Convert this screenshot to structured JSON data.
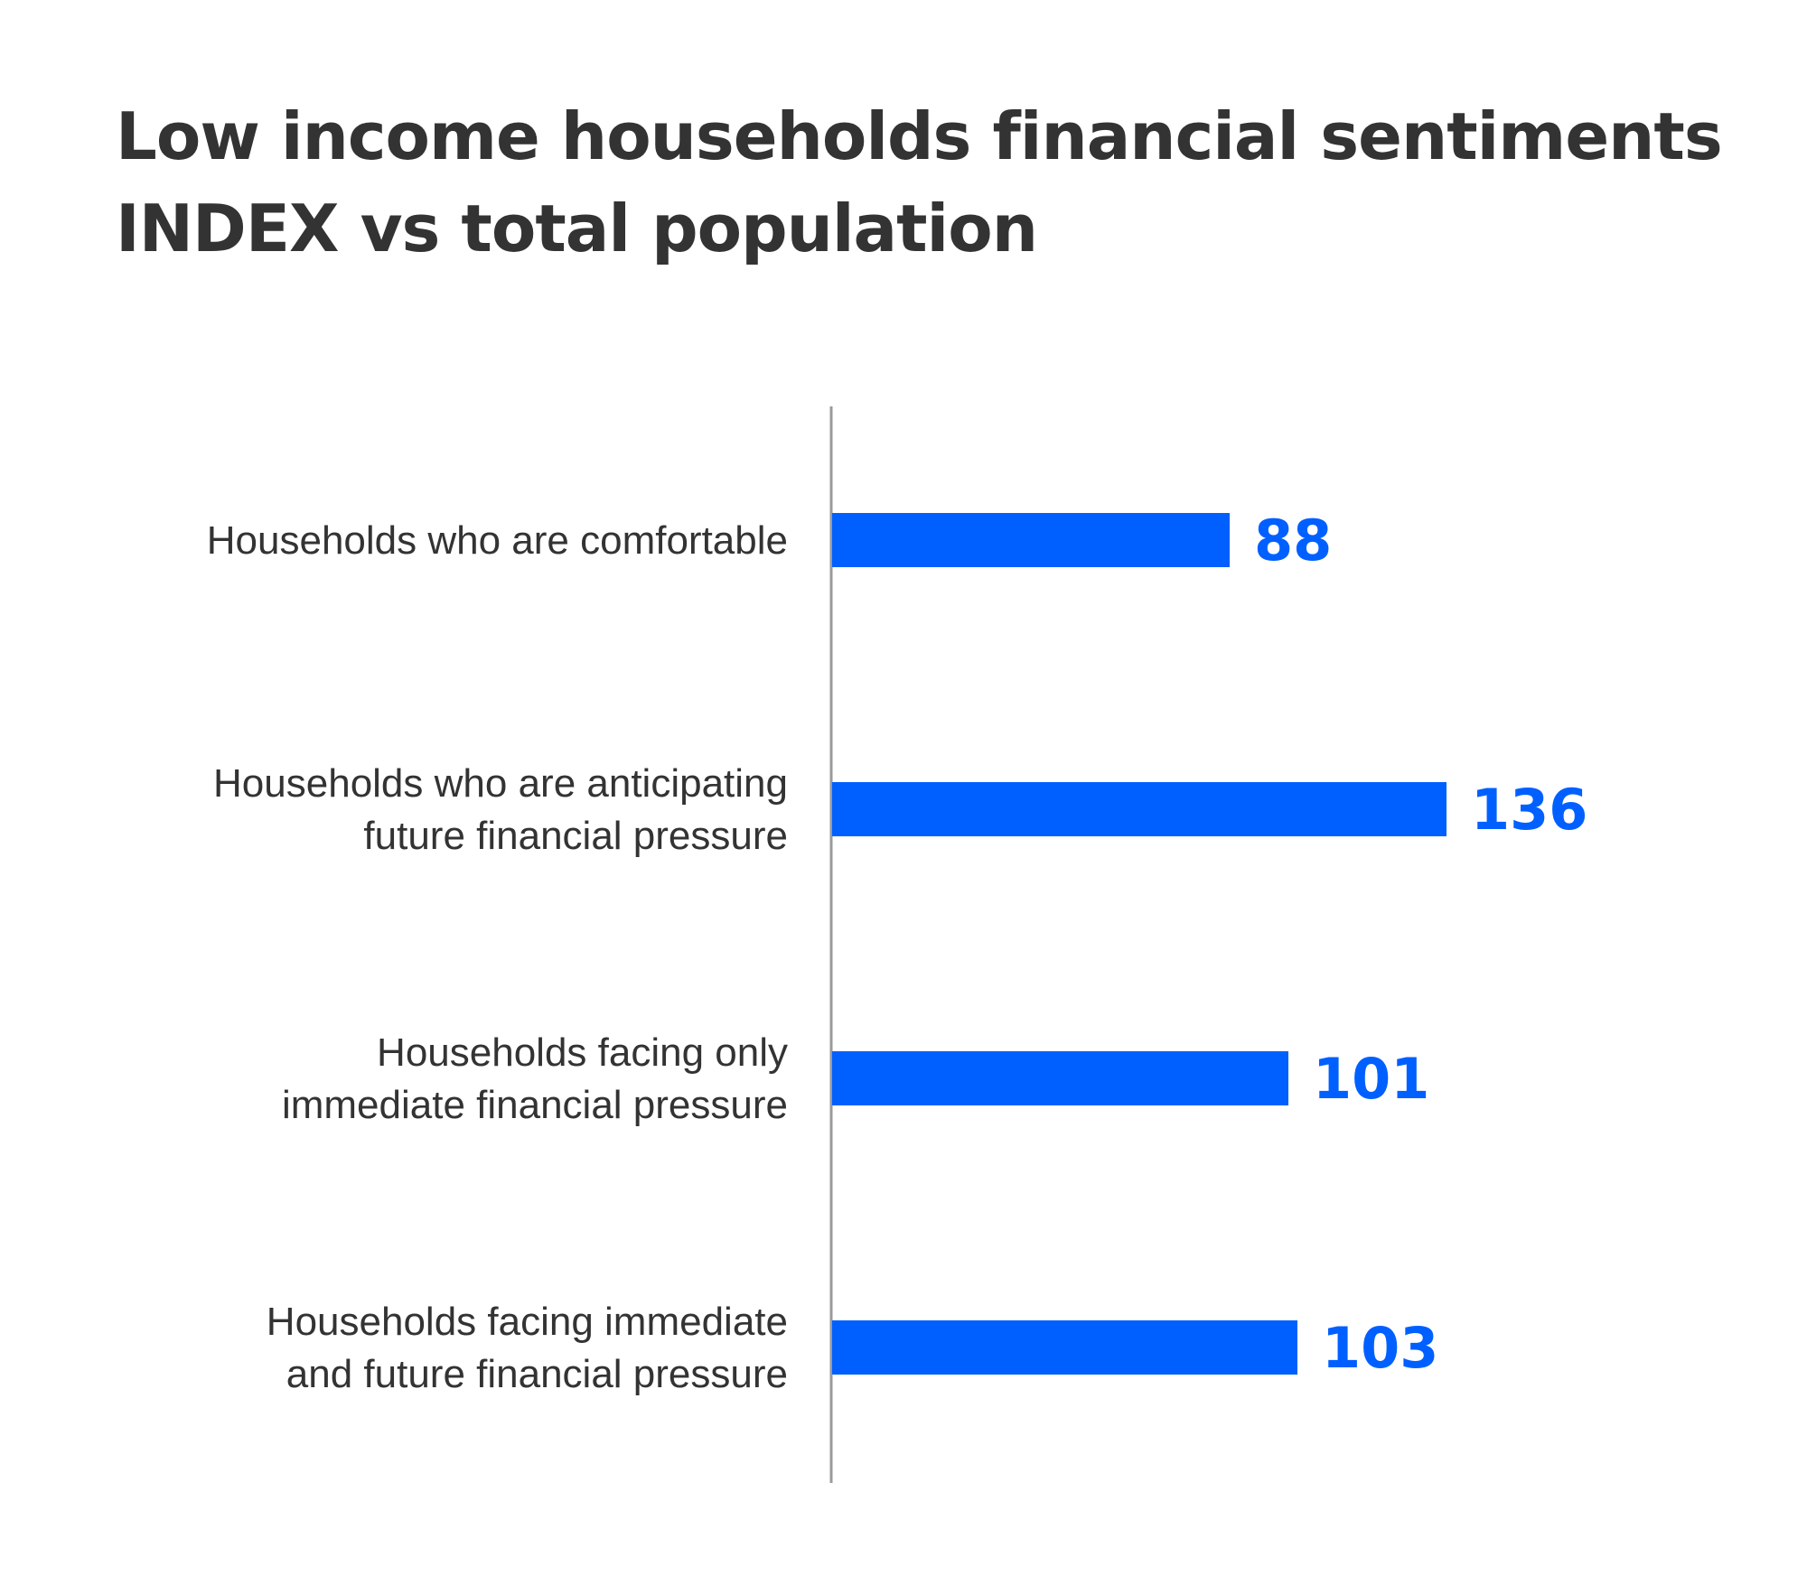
{
  "chart_data": {
    "type": "bar",
    "orientation": "horizontal",
    "title_lines": [
      "Low income households financial sentiments",
      "INDEX vs total population"
    ],
    "categories": [
      [
        "Households who are comfortable"
      ],
      [
        "Households who are anticipating",
        "future financial pressure"
      ],
      [
        "Households facing only",
        "immediate financial pressure"
      ],
      [
        "Households facing immediate",
        "and future financial pressure"
      ]
    ],
    "values": [
      88,
      136,
      101,
      103
    ],
    "value_labels": [
      "88",
      "136",
      "101",
      "103"
    ],
    "xlim": [
      0,
      160
    ],
    "grid": false,
    "legend": "none",
    "colors": {
      "bar": "#0060ff",
      "value_label": "#0060ff",
      "axis": "#9a9a9a",
      "text": "#333333"
    }
  }
}
